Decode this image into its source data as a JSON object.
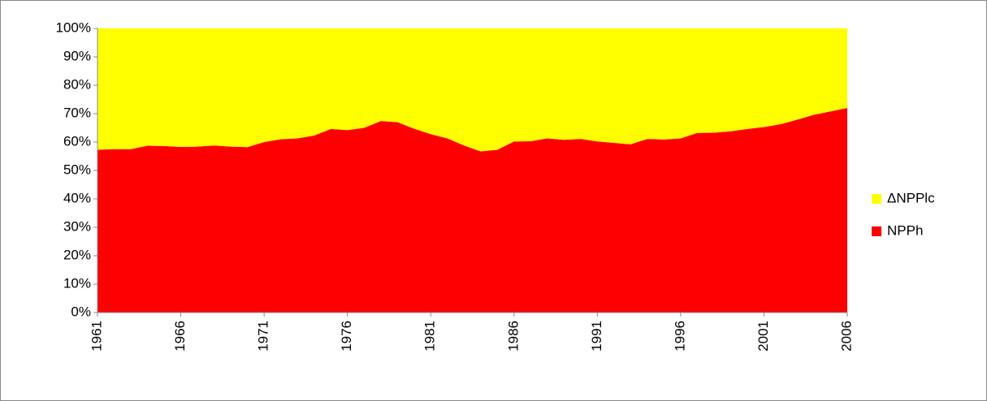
{
  "chart_data": {
    "type": "stacked-area",
    "x": [
      1961,
      1962,
      1963,
      1964,
      1965,
      1966,
      1967,
      1968,
      1969,
      1970,
      1971,
      1972,
      1973,
      1974,
      1975,
      1976,
      1977,
      1978,
      1979,
      1980,
      1981,
      1982,
      1983,
      1984,
      1985,
      1986,
      1987,
      1988,
      1989,
      1990,
      1991,
      1992,
      1993,
      1994,
      1995,
      1996,
      1997,
      1998,
      1999,
      2000,
      2001,
      2002,
      2003,
      2004,
      2005,
      2006
    ],
    "series": [
      {
        "name": "NPPh",
        "color": "#ff0000",
        "values": [
          57.3,
          57.5,
          57.5,
          58.7,
          58.6,
          58.3,
          58.4,
          58.8,
          58.4,
          58.2,
          60.0,
          61.0,
          61.3,
          62.3,
          64.6,
          64.2,
          65.0,
          67.4,
          67.0,
          64.7,
          62.8,
          61.3,
          58.8,
          56.7,
          57.3,
          60.2,
          60.3,
          61.3,
          60.8,
          61.1,
          60.2,
          59.7,
          59.2,
          61.1,
          60.9,
          61.3,
          63.2,
          63.3,
          63.8,
          64.6,
          65.3,
          66.3,
          67.9,
          69.6,
          70.8,
          72.0
        ]
      },
      {
        "name": "ΔNPPlc",
        "color": "#ffff00",
        "values": [
          42.7,
          42.5,
          42.5,
          41.3,
          41.4,
          41.7,
          41.6,
          41.2,
          41.6,
          41.8,
          40.0,
          39.0,
          38.7,
          37.7,
          35.4,
          35.8,
          35.0,
          32.6,
          33.0,
          35.3,
          37.2,
          38.7,
          41.2,
          43.3,
          42.7,
          39.8,
          39.7,
          38.7,
          39.2,
          38.9,
          39.8,
          40.3,
          40.8,
          38.9,
          39.1,
          38.7,
          36.8,
          36.7,
          36.2,
          35.4,
          34.7,
          33.7,
          32.1,
          30.4,
          29.2,
          28.0
        ]
      }
    ],
    "xlim": [
      1961,
      2006
    ],
    "xticks": [
      1961,
      1966,
      1971,
      1976,
      1981,
      1986,
      1991,
      1996,
      2001,
      2006
    ],
    "ylim": [
      0,
      100
    ],
    "yticks": [
      {
        "value": 0,
        "label": "0%"
      },
      {
        "value": 10,
        "label": "10%"
      },
      {
        "value": 20,
        "label": "20%"
      },
      {
        "value": 30,
        "label": "30%"
      },
      {
        "value": 40,
        "label": "40%"
      },
      {
        "value": 50,
        "label": "50%"
      },
      {
        "value": 60,
        "label": "60%"
      },
      {
        "value": 70,
        "label": "70%"
      },
      {
        "value": 80,
        "label": "80%"
      },
      {
        "value": 90,
        "label": "90%"
      },
      {
        "value": 100,
        "label": "100%"
      }
    ],
    "legend": "right"
  }
}
